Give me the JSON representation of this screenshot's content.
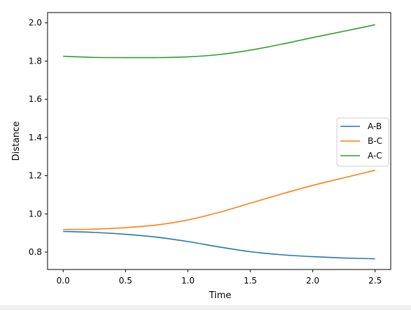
{
  "chart_data": {
    "type": "line",
    "xlabel": "Time",
    "ylabel": "Distance",
    "xlim": [
      -0.125,
      2.625
    ],
    "ylim": [
      0.7088,
      2.0538
    ],
    "xticks": [
      0.0,
      0.5,
      1.0,
      1.5,
      2.0,
      2.5
    ],
    "xtick_labels": [
      "0.0",
      "0.5",
      "1.0",
      "1.5",
      "2.0",
      "2.5"
    ],
    "yticks": [
      0.8,
      1.0,
      1.2,
      1.4,
      1.6,
      1.8,
      2.0
    ],
    "ytick_labels": [
      "0.8",
      "1.0",
      "1.2",
      "1.4",
      "1.6",
      "1.8",
      "2.0"
    ],
    "legend_position": "center-right",
    "grid": false,
    "x": [
      0.0,
      0.25,
      0.5,
      0.75,
      1.0,
      1.25,
      1.5,
      1.75,
      2.0,
      2.25,
      2.5
    ],
    "series": [
      {
        "name": "A-B",
        "color": "#1f77b4",
        "values": [
          0.908,
          0.903,
          0.893,
          0.878,
          0.855,
          0.827,
          0.802,
          0.786,
          0.776,
          0.769,
          0.765
        ]
      },
      {
        "name": "B-C",
        "color": "#ff7f0e",
        "values": [
          0.918,
          0.92,
          0.928,
          0.942,
          0.968,
          1.008,
          1.056,
          1.104,
          1.149,
          1.189,
          1.228
        ]
      },
      {
        "name": "A-C",
        "color": "#2ca02c",
        "values": [
          1.825,
          1.819,
          1.818,
          1.818,
          1.822,
          1.834,
          1.857,
          1.888,
          1.923,
          1.956,
          1.99
        ]
      }
    ]
  }
}
